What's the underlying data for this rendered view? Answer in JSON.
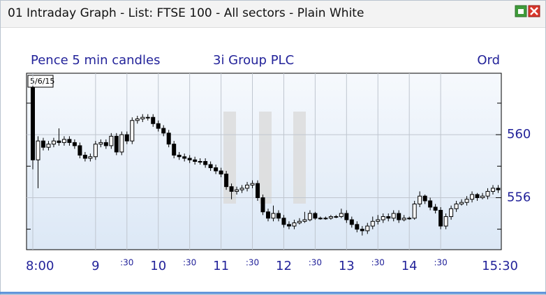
{
  "window": {
    "title": "01 Intraday Graph - List: FTSE 100 - All sectors - Plain White"
  },
  "chart_data": {
    "type": "candlestick",
    "interval": "Pence 5 min candles",
    "instrument": "3i Group PLC",
    "share_class": "Ord",
    "date": "5/6/15",
    "xlim": [
      474,
      928
    ],
    "ylim": [
      552.7,
      563.9
    ],
    "xticks": [
      {
        "value": 480,
        "label": "8:00"
      },
      {
        "value": 540,
        "label": "9"
      },
      {
        "value": 570,
        "label": ":30"
      },
      {
        "value": 600,
        "label": "10"
      },
      {
        "value": 630,
        "label": ":30"
      },
      {
        "value": 660,
        "label": "11"
      },
      {
        "value": 690,
        "label": ":30"
      },
      {
        "value": 720,
        "label": "12"
      },
      {
        "value": 750,
        "label": ":30"
      },
      {
        "value": 780,
        "label": "13"
      },
      {
        "value": 810,
        "label": ":30"
      },
      {
        "value": 840,
        "label": "14"
      },
      {
        "value": 870,
        "label": ":30"
      },
      {
        "value": 930,
        "label": "15:30"
      }
    ],
    "yticks": [
      556,
      560
    ],
    "minor_yticks": [
      554,
      558,
      562
    ],
    "grid": true,
    "x": [
      480,
      485,
      490,
      495,
      500,
      505,
      510,
      515,
      520,
      525,
      530,
      535,
      540,
      545,
      550,
      555,
      560,
      565,
      570,
      575,
      580,
      585,
      590,
      595,
      600,
      605,
      610,
      615,
      620,
      625,
      630,
      635,
      640,
      645,
      650,
      655,
      660,
      665,
      670,
      675,
      680,
      685,
      690,
      695,
      700,
      705,
      710,
      715,
      720,
      725,
      730,
      735,
      740,
      745,
      750,
      755,
      760,
      765,
      770,
      775,
      780,
      785,
      790,
      795,
      800,
      805,
      810,
      815,
      820,
      825,
      830,
      835,
      840,
      845,
      850,
      855,
      860,
      865,
      870,
      875,
      880,
      885,
      890,
      895,
      900,
      905,
      910,
      915,
      920,
      925
    ],
    "candles": [
      [
        563.0,
        563.1,
        557.8,
        558.4
      ],
      [
        558.4,
        559.9,
        556.6,
        559.6
      ],
      [
        559.6,
        559.8,
        559.0,
        559.2
      ],
      [
        559.2,
        559.6,
        559.0,
        559.4
      ],
      [
        559.4,
        559.8,
        559.2,
        559.6
      ],
      [
        559.6,
        560.4,
        559.3,
        559.5
      ],
      [
        559.5,
        559.9,
        559.3,
        559.7
      ],
      [
        559.7,
        559.9,
        559.3,
        559.5
      ],
      [
        559.5,
        559.7,
        559.1,
        559.3
      ],
      [
        559.3,
        559.5,
        558.5,
        558.7
      ],
      [
        558.7,
        558.9,
        558.3,
        558.5
      ],
      [
        558.5,
        558.8,
        558.3,
        558.6
      ],
      [
        558.6,
        559.6,
        558.4,
        559.4
      ],
      [
        559.4,
        559.7,
        559.2,
        559.5
      ],
      [
        559.5,
        559.7,
        559.1,
        559.3
      ],
      [
        559.3,
        560.1,
        559.1,
        559.9
      ],
      [
        559.9,
        560.1,
        558.7,
        558.9
      ],
      [
        558.9,
        560.2,
        558.7,
        560.0
      ],
      [
        560.0,
        560.2,
        559.4,
        559.6
      ],
      [
        559.6,
        561.1,
        559.4,
        560.9
      ],
      [
        560.9,
        561.2,
        560.7,
        561.0
      ],
      [
        561.0,
        561.3,
        560.8,
        561.1
      ],
      [
        561.1,
        561.3,
        560.9,
        561.1
      ],
      [
        561.1,
        561.3,
        560.5,
        560.7
      ],
      [
        560.7,
        560.9,
        560.2,
        560.4
      ],
      [
        560.4,
        560.6,
        559.9,
        560.1
      ],
      [
        560.1,
        560.3,
        559.2,
        559.4
      ],
      [
        559.4,
        559.6,
        558.5,
        558.7
      ],
      [
        558.7,
        558.9,
        558.4,
        558.6
      ],
      [
        558.6,
        558.8,
        558.3,
        558.5
      ],
      [
        558.5,
        558.7,
        558.2,
        558.4
      ],
      [
        558.4,
        558.6,
        558.1,
        558.3
      ],
      [
        558.3,
        558.5,
        558.1,
        558.3
      ],
      [
        558.3,
        558.5,
        557.9,
        558.1
      ],
      [
        558.1,
        558.3,
        557.7,
        557.9
      ],
      [
        557.9,
        558.1,
        557.5,
        557.7
      ],
      [
        557.7,
        557.9,
        557.3,
        557.5
      ],
      [
        557.5,
        557.7,
        556.5,
        556.7
      ],
      [
        556.7,
        556.9,
        555.9,
        556.4
      ],
      [
        556.4,
        556.7,
        556.2,
        556.5
      ],
      [
        556.5,
        556.8,
        556.3,
        556.6
      ],
      [
        556.6,
        557.0,
        556.4,
        556.8
      ],
      [
        556.8,
        557.1,
        556.6,
        556.9
      ],
      [
        556.9,
        557.1,
        555.8,
        556.0
      ],
      [
        556.0,
        556.2,
        554.9,
        555.1
      ],
      [
        555.1,
        555.3,
        554.5,
        554.7
      ],
      [
        554.7,
        555.5,
        554.5,
        555.0
      ],
      [
        555.0,
        555.2,
        554.5,
        554.7
      ],
      [
        554.7,
        554.9,
        554.1,
        554.3
      ],
      [
        554.3,
        554.5,
        554.0,
        554.2
      ],
      [
        554.2,
        554.6,
        554.0,
        554.4
      ],
      [
        554.4,
        554.7,
        554.3,
        554.5
      ],
      [
        554.5,
        555.1,
        554.4,
        554.6
      ],
      [
        554.6,
        555.2,
        554.5,
        555.0
      ],
      [
        555.0,
        555.1,
        554.6,
        554.7
      ],
      [
        554.7,
        554.8,
        554.6,
        554.7
      ],
      [
        554.7,
        554.8,
        554.6,
        554.7
      ],
      [
        554.7,
        554.9,
        554.6,
        554.8
      ],
      [
        554.8,
        554.9,
        554.7,
        554.8
      ],
      [
        554.8,
        555.3,
        554.7,
        555.0
      ],
      [
        555.0,
        555.2,
        554.4,
        554.6
      ],
      [
        554.6,
        554.8,
        554.1,
        554.3
      ],
      [
        554.3,
        554.5,
        553.8,
        554.0
      ],
      [
        554.0,
        554.2,
        553.6,
        553.9
      ],
      [
        553.9,
        554.4,
        553.7,
        554.2
      ],
      [
        554.2,
        554.8,
        554.0,
        554.5
      ],
      [
        554.5,
        554.9,
        554.3,
        554.6
      ],
      [
        554.6,
        555.0,
        554.4,
        554.8
      ],
      [
        554.8,
        555.0,
        554.5,
        554.7
      ],
      [
        554.7,
        555.2,
        554.5,
        555.0
      ],
      [
        555.0,
        555.2,
        554.4,
        554.6
      ],
      [
        554.6,
        554.9,
        554.5,
        554.7
      ],
      [
        554.7,
        554.8,
        554.6,
        554.7
      ],
      [
        554.7,
        555.8,
        554.6,
        555.6
      ],
      [
        555.6,
        556.4,
        555.4,
        556.1
      ],
      [
        556.1,
        556.2,
        555.6,
        555.8
      ],
      [
        555.8,
        556.0,
        555.2,
        555.4
      ],
      [
        555.4,
        555.6,
        555.0,
        555.2
      ],
      [
        555.2,
        555.4,
        554.0,
        554.2
      ],
      [
        554.2,
        555.0,
        554.0,
        554.8
      ],
      [
        554.8,
        555.5,
        554.6,
        555.3
      ],
      [
        555.3,
        555.8,
        555.1,
        555.6
      ],
      [
        555.6,
        555.9,
        555.5,
        555.7
      ],
      [
        555.7,
        556.1,
        555.5,
        555.9
      ],
      [
        555.9,
        556.4,
        555.7,
        556.2
      ],
      [
        556.2,
        556.3,
        555.8,
        556.0
      ],
      [
        556.0,
        556.3,
        555.9,
        556.1
      ],
      [
        556.1,
        556.6,
        555.9,
        556.4
      ],
      [
        556.4,
        556.8,
        556.2,
        556.6
      ],
      [
        556.6,
        556.8,
        556.3,
        556.5
      ]
    ]
  }
}
